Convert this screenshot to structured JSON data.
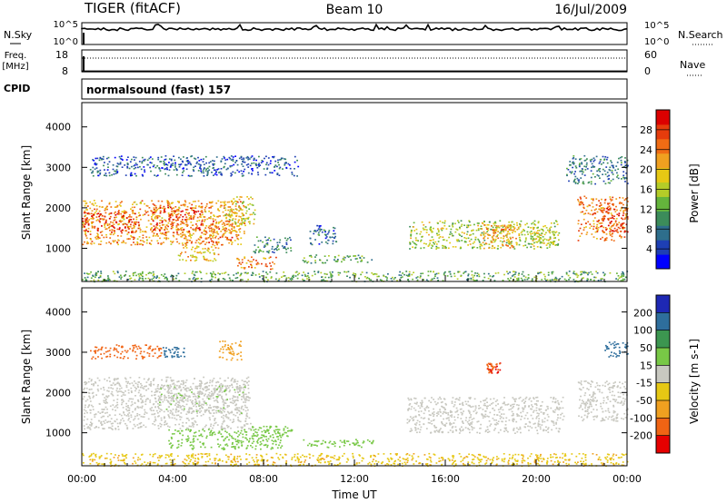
{
  "header": {
    "station": "TIGER (fitACF)",
    "beam": "Beam 10",
    "date": "16/Jul/2009"
  },
  "strips": {
    "nsky": {
      "label": "N.Sky",
      "ticks": [
        "10^5",
        "10^0"
      ],
      "right_label": "N.Search",
      "right_ticks": [
        "10^5",
        "10^0"
      ],
      "level": 0.7
    },
    "freq": {
      "label_line1": "Freq.",
      "label_line2": "[MHz]",
      "ticks": [
        "18",
        "8"
      ],
      "right_label": "Nave",
      "right_ticks": [
        "60",
        "0"
      ],
      "freq_mhz": 11.5,
      "nave": 30
    },
    "cpid": {
      "label": "CPID",
      "text": "normalsound (fast) 157"
    }
  },
  "chart_data": [
    {
      "type": "heatmap",
      "title": "",
      "quantity": "Power",
      "ylabel": "Slant Range [km]",
      "xlabel": "",
      "y_ticks": [
        1000,
        2000,
        3000,
        4000
      ],
      "ylim": [
        180,
        4600
      ],
      "x_ticks": [
        "00:00",
        "04:00",
        "08:00",
        "12:00",
        "16:00",
        "20:00",
        "00:00"
      ],
      "xlim_hours": [
        0,
        24
      ],
      "colorbar": {
        "label": "Power [dB]",
        "ticks": [
          4,
          8,
          12,
          16,
          20,
          24,
          28
        ],
        "range": [
          0,
          32
        ],
        "colors": [
          "#0000ff",
          "#1e3fb4",
          "#2e6e8c",
          "#3c8c5a",
          "#64b43c",
          "#b4cc28",
          "#e6c814",
          "#f0a020",
          "#f06c14",
          "#e63c0c",
          "#dc0000"
        ]
      },
      "regions": [
        {
          "t0": 0,
          "t1": 7.2,
          "r0": 1100,
          "r1": 2200,
          "power": 22
        },
        {
          "t0": 0,
          "t1": 2.5,
          "r0": 1400,
          "r1": 1900,
          "power": 28
        },
        {
          "t0": 3.1,
          "t1": 5.3,
          "r0": 1400,
          "r1": 2100,
          "power": 27
        },
        {
          "t0": 5.4,
          "t1": 6.6,
          "r0": 1100,
          "r1": 1700,
          "power": 25
        },
        {
          "t0": 4.2,
          "t1": 6.0,
          "r0": 700,
          "r1": 1100,
          "power": 20
        },
        {
          "t0": 6.2,
          "t1": 7.6,
          "r0": 1600,
          "r1": 2300,
          "power": 18
        },
        {
          "t0": 6.8,
          "t1": 8.6,
          "r0": 500,
          "r1": 800,
          "power": 24
        },
        {
          "t0": 7.5,
          "t1": 9.2,
          "r0": 900,
          "r1": 1300,
          "power": 9
        },
        {
          "t0": 10.0,
          "t1": 11.2,
          "r0": 1100,
          "r1": 1600,
          "power": 7
        },
        {
          "t0": 9.7,
          "t1": 12.8,
          "r0": 650,
          "r1": 850,
          "power": 12
        },
        {
          "t0": 14.4,
          "t1": 21.0,
          "r0": 1000,
          "r1": 1700,
          "power": 16
        },
        {
          "t0": 17.5,
          "t1": 19.2,
          "r0": 1000,
          "r1": 1600,
          "power": 22
        },
        {
          "t0": 19.8,
          "t1": 20.8,
          "r0": 1100,
          "r1": 1500,
          "power": 18
        },
        {
          "t0": 21.8,
          "t1": 24,
          "r0": 1200,
          "r1": 2300,
          "power": 24
        },
        {
          "t0": 22.8,
          "t1": 24,
          "r0": 1400,
          "r1": 2000,
          "power": 28
        },
        {
          "t0": 0,
          "t1": 24,
          "r0": 190,
          "r1": 450,
          "power": 12
        },
        {
          "t0": 0.3,
          "t1": 9.5,
          "r0": 2800,
          "r1": 3300,
          "power": 6
        },
        {
          "t0": 21.3,
          "t1": 24,
          "r0": 2600,
          "r1": 3300,
          "power": 8
        }
      ]
    },
    {
      "type": "heatmap",
      "title": "",
      "quantity": "Velocity",
      "ylabel": "Slant Range [km]",
      "xlabel": "Time UT",
      "y_ticks": [
        1000,
        2000,
        3000,
        4000
      ],
      "ylim": [
        180,
        4600
      ],
      "x_ticks": [
        "00:00",
        "04:00",
        "08:00",
        "12:00",
        "16:00",
        "20:00",
        "00:00"
      ],
      "xlim_hours": [
        0,
        24
      ],
      "colorbar": {
        "label": "Velocity [m s-1]",
        "ticks": [
          "200",
          "100",
          "50",
          "15",
          "-15",
          "-50",
          "-100",
          "-200"
        ],
        "colors": [
          "#1e28b4",
          "#2e6e9c",
          "#3c9650",
          "#78c846",
          "#c8c8c0",
          "#e6c814",
          "#f0a020",
          "#f06414",
          "#e60000"
        ]
      },
      "regions": [
        {
          "t0": 0,
          "t1": 7.4,
          "r0": 1100,
          "r1": 2400,
          "velocity": 0
        },
        {
          "t0": 3.3,
          "t1": 7.2,
          "r0": 1500,
          "r1": 2200,
          "velocity": 5
        },
        {
          "t0": 3.8,
          "t1": 8.8,
          "r0": 600,
          "r1": 1100,
          "velocity": 35
        },
        {
          "t0": 7.4,
          "t1": 9.3,
          "r0": 900,
          "r1": 1200,
          "velocity": 30
        },
        {
          "t0": 9.6,
          "t1": 12.8,
          "r0": 650,
          "r1": 850,
          "velocity": 30
        },
        {
          "t0": 14.3,
          "t1": 21.2,
          "r0": 1000,
          "r1": 1900,
          "velocity": 0
        },
        {
          "t0": 21.8,
          "t1": 24,
          "r0": 1300,
          "r1": 2300,
          "velocity": 0
        },
        {
          "t0": 0,
          "t1": 24,
          "r0": 190,
          "r1": 500,
          "velocity": -40
        },
        {
          "t0": 0.3,
          "t1": 3.5,
          "r0": 2850,
          "r1": 3200,
          "velocity": -150
        },
        {
          "t0": 3.5,
          "t1": 4.5,
          "r0": 2850,
          "r1": 3150,
          "velocity": 180
        },
        {
          "t0": 6.0,
          "t1": 7.0,
          "r0": 2800,
          "r1": 3300,
          "velocity": -80
        },
        {
          "t0": 17.8,
          "t1": 18.4,
          "r0": 2500,
          "r1": 2750,
          "velocity": -200
        },
        {
          "t0": 23.0,
          "t1": 24,
          "r0": 2900,
          "r1": 3300,
          "velocity": 150
        }
      ]
    }
  ]
}
